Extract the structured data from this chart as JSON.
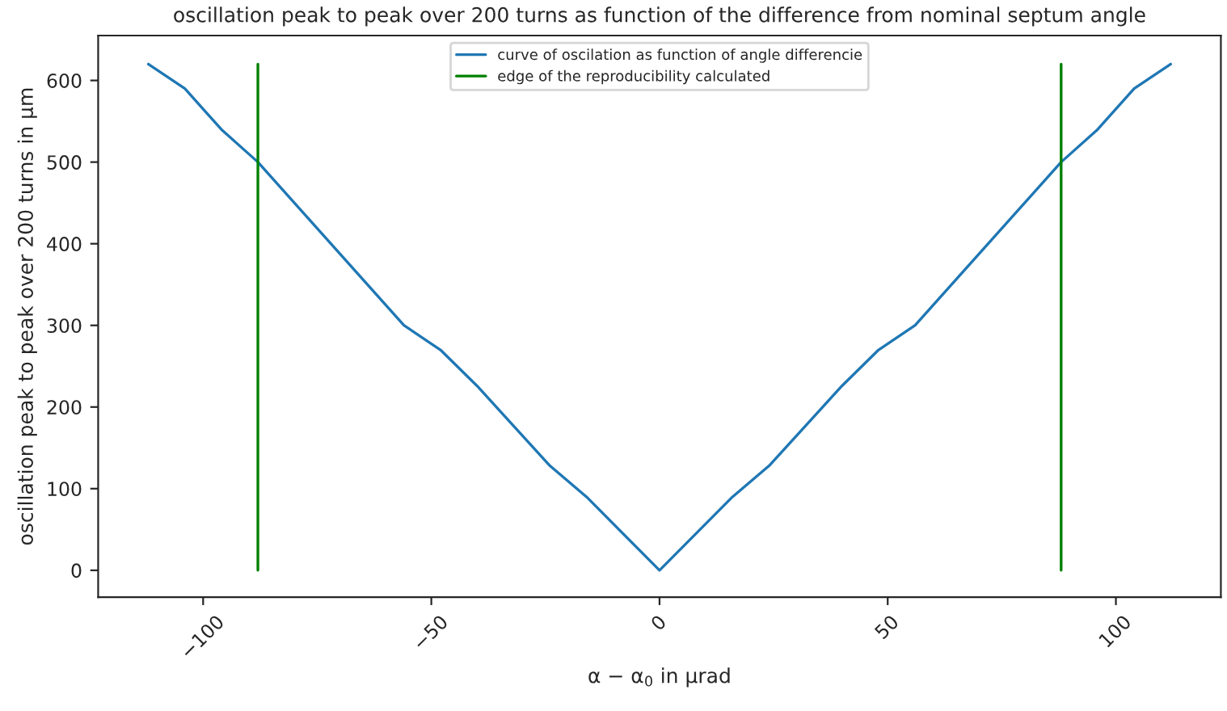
{
  "chart_data": {
    "type": "line",
    "title": "oscillation peak to peak over 200 turns as function of the difference from nominal septum angle",
    "xlabel": "α − α$_{0}$ in µrad",
    "ylabel": "oscillation peak to peak over 200 turns in µm",
    "series": [
      {
        "name": "curve of oscilation as function of angle differencie",
        "color": "#1f77b4",
        "x": [
          -112,
          -104,
          -96,
          -88,
          -56,
          -48,
          -40,
          -24,
          -16,
          0,
          16,
          24,
          40,
          48,
          56,
          88,
          96,
          104,
          112
        ],
        "values": [
          620,
          590,
          540,
          500,
          300,
          270,
          226,
          128,
          90,
          0,
          90,
          128,
          226,
          270,
          300,
          500,
          540,
          590,
          620
        ]
      },
      {
        "name": "edge of the reproducibility calculated",
        "color": "#008000",
        "x": [
          -88,
          -88,
          0,
          88,
          88
        ],
        "values": [
          0,
          620,
          null,
          0,
          620
        ]
      }
    ],
    "xlim": [
      -123,
      123
    ],
    "xticks": [
      {
        "value": -100,
        "label": "−100"
      },
      {
        "value": -50,
        "label": "−50"
      },
      0,
      50,
      100
    ],
    "ylim": [
      -33,
      655
    ],
    "yticks": [
      0,
      100,
      200,
      300,
      400,
      500,
      600
    ],
    "legend": "top",
    "grid": false
  }
}
